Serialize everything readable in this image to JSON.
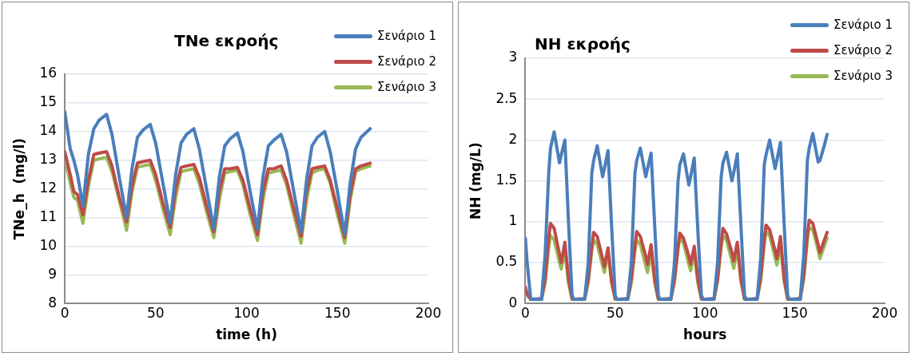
{
  "chart_data": [
    {
      "type": "line",
      "title": "TNe εκροής",
      "xlabel": "time (h)",
      "ylabel": "TNe_h  (mg/l)",
      "xlim": [
        0,
        200
      ],
      "xticks": [
        0,
        50,
        100,
        150,
        200
      ],
      "ylim": [
        8,
        16
      ],
      "yticks": [
        8,
        9,
        10,
        11,
        12,
        13,
        14,
        15,
        16
      ],
      "grid": "y",
      "legend": "top right",
      "marker": "none",
      "x": [
        0,
        3,
        5,
        7,
        10,
        13,
        16,
        19,
        23,
        26,
        30,
        34,
        37,
        40,
        43,
        47,
        50,
        54,
        58,
        61,
        64,
        67,
        71,
        74,
        78,
        82,
        85,
        88,
        91,
        95,
        98,
        102,
        106,
        109,
        112,
        115,
        119,
        122,
        126,
        130,
        133,
        136,
        139,
        143,
        146,
        150,
        154,
        157,
        160,
        163,
        168
      ],
      "series": [
        {
          "name": "Σενάριο 1",
          "color": "#4a7ebb",
          "values": [
            14.7,
            13.4,
            13.0,
            12.5,
            11.4,
            13.2,
            14.1,
            14.4,
            14.6,
            13.9,
            12.4,
            11.0,
            12.7,
            13.8,
            14.05,
            14.25,
            13.6,
            12.2,
            10.8,
            12.5,
            13.6,
            13.9,
            14.1,
            13.4,
            12.0,
            10.6,
            12.4,
            13.5,
            13.75,
            13.95,
            13.3,
            11.9,
            10.6,
            12.4,
            13.5,
            13.7,
            13.9,
            13.3,
            11.9,
            10.5,
            12.3,
            13.5,
            13.8,
            14.0,
            13.3,
            11.9,
            10.4,
            12.2,
            13.4,
            13.8,
            14.1
          ]
        },
        {
          "name": "Σενάριο 2",
          "color": "#be4b48",
          "values": [
            13.3,
            12.5,
            11.9,
            11.8,
            11.1,
            12.3,
            13.2,
            13.25,
            13.3,
            12.8,
            11.7,
            10.85,
            12.1,
            12.9,
            12.95,
            13.0,
            12.5,
            11.5,
            10.65,
            12.0,
            12.75,
            12.8,
            12.85,
            12.4,
            11.4,
            10.5,
            11.9,
            12.7,
            12.7,
            12.75,
            12.3,
            11.3,
            10.4,
            11.9,
            12.7,
            12.7,
            12.8,
            12.3,
            11.3,
            10.35,
            11.9,
            12.7,
            12.75,
            12.8,
            12.3,
            11.3,
            10.3,
            11.8,
            12.7,
            12.8,
            12.9
          ]
        },
        {
          "name": "Σενάριο 3",
          "color": "#98b954",
          "values": [
            13.1,
            12.2,
            11.7,
            11.6,
            10.8,
            12.1,
            13.0,
            13.05,
            13.1,
            12.6,
            11.6,
            10.55,
            11.9,
            12.75,
            12.8,
            12.85,
            12.3,
            11.3,
            10.4,
            11.7,
            12.6,
            12.65,
            12.7,
            12.2,
            11.2,
            10.3,
            11.6,
            12.55,
            12.6,
            12.65,
            12.15,
            11.1,
            10.2,
            11.6,
            12.55,
            12.6,
            12.65,
            12.15,
            11.1,
            10.1,
            11.6,
            12.55,
            12.65,
            12.7,
            12.2,
            11.1,
            10.1,
            11.6,
            12.6,
            12.7,
            12.8
          ]
        }
      ]
    },
    {
      "type": "line",
      "title": "NH εκροής",
      "xlabel": "hours",
      "ylabel": "NH (mg/L)",
      "xlim": [
        0,
        200
      ],
      "xticks": [
        0,
        50,
        100,
        150,
        200
      ],
      "ylim": [
        0,
        3
      ],
      "yticks": [
        0,
        0.5,
        1,
        1.5,
        2,
        2.5,
        3
      ],
      "grid": "y",
      "legend": "top right",
      "marker": "none",
      "x": [
        0,
        1,
        3,
        9,
        11,
        13,
        14,
        16,
        19,
        20,
        22,
        24,
        26,
        27,
        33,
        35,
        37,
        38,
        40,
        43,
        44,
        46,
        48,
        50,
        51,
        57,
        59,
        61,
        62,
        64,
        67,
        68,
        70,
        72,
        74,
        75,
        81,
        83,
        85,
        86,
        88,
        91,
        92,
        94,
        96,
        98,
        99,
        105,
        107,
        109,
        110,
        112,
        115,
        116,
        118,
        120,
        122,
        123,
        129,
        131,
        133,
        134,
        136,
        139,
        140,
        142,
        144,
        146,
        147,
        153,
        155,
        157,
        158,
        160,
        163,
        164,
        166,
        168
      ],
      "series": [
        {
          "name": "Σενάριο 1",
          "color": "#4a7ebb",
          "values": [
            0.8,
            0.5,
            0.05,
            0.05,
            0.6,
            1.6,
            1.9,
            2.1,
            1.72,
            1.82,
            2.0,
            1.0,
            0.1,
            0.05,
            0.05,
            0.5,
            1.6,
            1.75,
            1.93,
            1.55,
            1.65,
            1.87,
            0.95,
            0.1,
            0.05,
            0.05,
            0.5,
            1.6,
            1.75,
            1.9,
            1.55,
            1.65,
            1.84,
            0.95,
            0.1,
            0.05,
            0.05,
            0.5,
            1.5,
            1.7,
            1.83,
            1.45,
            1.55,
            1.78,
            0.9,
            0.1,
            0.05,
            0.05,
            0.5,
            1.55,
            1.72,
            1.85,
            1.5,
            1.6,
            1.83,
            0.95,
            0.1,
            0.05,
            0.05,
            0.55,
            1.7,
            1.82,
            2.0,
            1.65,
            1.75,
            1.97,
            1.0,
            0.1,
            0.05,
            0.05,
            0.6,
            1.75,
            1.9,
            2.08,
            1.73,
            1.75,
            1.9,
            2.07
          ]
        },
        {
          "name": "Σενάριο 2",
          "color": "#be4b48",
          "values": [
            0.2,
            0.12,
            0.05,
            0.06,
            0.3,
            0.8,
            0.98,
            0.92,
            0.6,
            0.5,
            0.75,
            0.3,
            0.06,
            0.05,
            0.06,
            0.3,
            0.7,
            0.87,
            0.82,
            0.55,
            0.45,
            0.68,
            0.28,
            0.06,
            0.05,
            0.06,
            0.3,
            0.7,
            0.88,
            0.82,
            0.58,
            0.48,
            0.72,
            0.3,
            0.06,
            0.05,
            0.06,
            0.3,
            0.7,
            0.86,
            0.8,
            0.58,
            0.48,
            0.7,
            0.3,
            0.06,
            0.05,
            0.06,
            0.3,
            0.75,
            0.92,
            0.85,
            0.62,
            0.52,
            0.75,
            0.3,
            0.06,
            0.05,
            0.06,
            0.32,
            0.8,
            0.96,
            0.9,
            0.65,
            0.55,
            0.82,
            0.32,
            0.06,
            0.05,
            0.06,
            0.35,
            0.85,
            1.02,
            0.98,
            0.72,
            0.62,
            0.75,
            0.87
          ]
        },
        {
          "name": "Σενάριο 3",
          "color": "#98b954",
          "values": [
            0.15,
            0.1,
            0.05,
            0.05,
            0.25,
            0.68,
            0.83,
            0.78,
            0.5,
            0.42,
            0.65,
            0.25,
            0.05,
            0.05,
            0.05,
            0.25,
            0.65,
            0.78,
            0.72,
            0.46,
            0.38,
            0.62,
            0.25,
            0.05,
            0.05,
            0.05,
            0.25,
            0.65,
            0.78,
            0.72,
            0.46,
            0.38,
            0.62,
            0.25,
            0.05,
            0.05,
            0.05,
            0.25,
            0.66,
            0.8,
            0.74,
            0.48,
            0.4,
            0.63,
            0.25,
            0.05,
            0.05,
            0.05,
            0.27,
            0.68,
            0.83,
            0.77,
            0.52,
            0.43,
            0.67,
            0.27,
            0.05,
            0.05,
            0.05,
            0.28,
            0.72,
            0.88,
            0.83,
            0.56,
            0.47,
            0.72,
            0.28,
            0.05,
            0.05,
            0.05,
            0.3,
            0.78,
            0.93,
            0.9,
            0.65,
            0.55,
            0.68,
            0.8
          ]
        }
      ]
    }
  ]
}
